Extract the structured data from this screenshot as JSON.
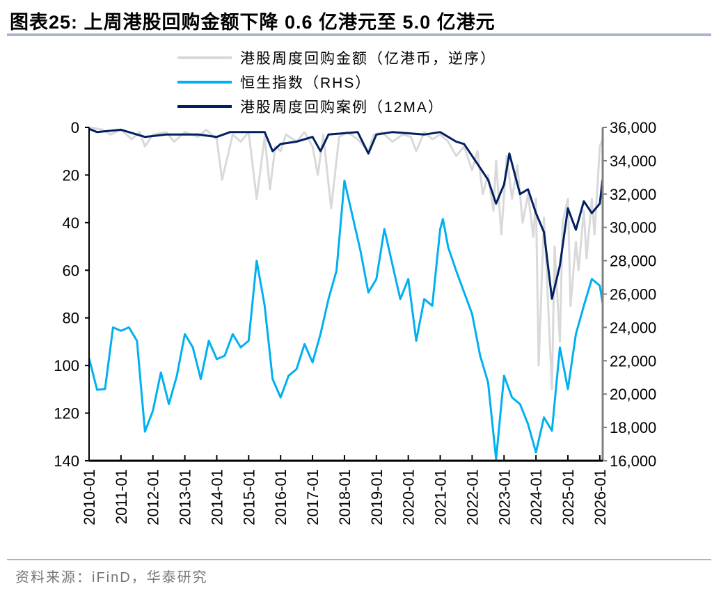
{
  "header": {
    "title": "图表25:  上周港股回购金额下降 0.6 亿港元至 5.0 亿港元"
  },
  "footer": {
    "source": "资料来源：iFinD，华泰研究"
  },
  "chart_data": {
    "type": "line",
    "title": "图表25:  上周港股回购金额下降 0.6 亿港元至 5.0 亿港元",
    "legend_position": "top-center",
    "grid": false,
    "x_ticks": [
      "2010-01",
      "2011-01",
      "2012-01",
      "2013-01",
      "2014-01",
      "2015-01",
      "2016-01",
      "2017-01",
      "2018-01",
      "2019-01",
      "2020-01",
      "2021-01",
      "2022-01",
      "2023-01",
      "2024-01",
      "2025-01",
      "2026-01"
    ],
    "left_axis": {
      "ylim": [
        0,
        140
      ],
      "inverted": true,
      "ticks": [
        "0",
        "20",
        "40",
        "60",
        "80",
        "100",
        "120",
        "140"
      ]
    },
    "right_axis": {
      "ylim": [
        16000,
        36000
      ],
      "ticks": [
        "16,000",
        "18,000",
        "20,000",
        "22,000",
        "24,000",
        "26,000",
        "28,000",
        "30,000",
        "32,000",
        "34,000",
        "36,000"
      ]
    },
    "series": [
      {
        "name": "港股周度回购金额（亿港币，逆序）",
        "axis": "left",
        "color": "#d9d9d9",
        "x": [
          "2010-01",
          "2010-06",
          "2010-09",
          "2011-01",
          "2011-05",
          "2011-08",
          "2011-10",
          "2012-01",
          "2012-06",
          "2012-09",
          "2013-01",
          "2013-06",
          "2013-09",
          "2014-01",
          "2014-03",
          "2014-07",
          "2014-10",
          "2015-01",
          "2015-04",
          "2015-07",
          "2015-09",
          "2015-11",
          "2016-01",
          "2016-03",
          "2016-07",
          "2016-10",
          "2017-01",
          "2017-03",
          "2017-05",
          "2017-08",
          "2017-11",
          "2018-02",
          "2018-06",
          "2018-10",
          "2018-12",
          "2019-03",
          "2019-07",
          "2019-11",
          "2020-02",
          "2020-04",
          "2020-07",
          "2020-10",
          "2021-01",
          "2021-04",
          "2021-07",
          "2021-10",
          "2022-01",
          "2022-03",
          "2022-05",
          "2022-07",
          "2022-09",
          "2022-10",
          "2022-12",
          "2023-02",
          "2023-04",
          "2023-06",
          "2023-08",
          "2023-10",
          "2023-12",
          "2024-01",
          "2024-02",
          "2024-04",
          "2024-05",
          "2024-07",
          "2024-08",
          "2024-10",
          "2024-11",
          "2025-01",
          "2025-02",
          "2025-04",
          "2025-05",
          "2025-07",
          "2025-08",
          "2025-10",
          "2025-11",
          "2026-01",
          "2026-02"
        ],
        "values": [
          0,
          1,
          3,
          1,
          5,
          2,
          8,
          3,
          2,
          6,
          2,
          4,
          1,
          5,
          22,
          3,
          6,
          2,
          30,
          4,
          26,
          8,
          10,
          3,
          6,
          2,
          8,
          20,
          3,
          34,
          4,
          2,
          5,
          10,
          3,
          2,
          6,
          3,
          4,
          10,
          2,
          5,
          3,
          6,
          12,
          8,
          18,
          10,
          28,
          20,
          35,
          14,
          45,
          12,
          30,
          16,
          40,
          28,
          46,
          30,
          100,
          38,
          60,
          110,
          50,
          90,
          40,
          30,
          75,
          48,
          60,
          35,
          55,
          30,
          45,
          8,
          5
        ]
      },
      {
        "name": "恒生指数（RHS）",
        "axis": "right",
        "color": "#00b0f0",
        "x": [
          "2010-01",
          "2010-04",
          "2010-07",
          "2010-10",
          "2011-01",
          "2011-04",
          "2011-07",
          "2011-10",
          "2012-01",
          "2012-04",
          "2012-07",
          "2012-10",
          "2013-01",
          "2013-04",
          "2013-07",
          "2013-10",
          "2014-01",
          "2014-04",
          "2014-07",
          "2014-10",
          "2015-01",
          "2015-04",
          "2015-07",
          "2015-10",
          "2016-01",
          "2016-04",
          "2016-07",
          "2016-10",
          "2017-01",
          "2017-04",
          "2017-07",
          "2017-10",
          "2018-01",
          "2018-04",
          "2018-07",
          "2018-10",
          "2019-01",
          "2019-04",
          "2019-07",
          "2019-10",
          "2020-01",
          "2020-04",
          "2020-07",
          "2020-10",
          "2021-01",
          "2021-02",
          "2021-04",
          "2021-07",
          "2021-10",
          "2022-01",
          "2022-04",
          "2022-07",
          "2022-10",
          "2023-01",
          "2023-04",
          "2023-07",
          "2023-10",
          "2024-01",
          "2024-04",
          "2024-07",
          "2024-10",
          "2025-01",
          "2025-04",
          "2025-07",
          "2025-10",
          "2026-01",
          "2026-02"
        ],
        "values": [
          22140,
          20260,
          20300,
          24000,
          23800,
          24000,
          23200,
          17750,
          19000,
          21300,
          19400,
          21100,
          23600,
          22800,
          20900,
          23200,
          22100,
          22300,
          23600,
          22800,
          23200,
          28000,
          25300,
          20900,
          19800,
          21100,
          21500,
          23000,
          21900,
          23600,
          25700,
          27400,
          32800,
          30700,
          28600,
          26100,
          26900,
          29900,
          27800,
          25700,
          26900,
          23200,
          25700,
          25300,
          29900,
          30500,
          28800,
          27400,
          26100,
          24800,
          22300,
          20700,
          16100,
          21100,
          19800,
          19400,
          18200,
          16500,
          18600,
          17800,
          22800,
          20300,
          23600,
          25300,
          26900,
          26500,
          25500
        ]
      },
      {
        "name": "港股周度回购案例（12MA）",
        "axis": "left",
        "color": "#002060",
        "x": [
          "2010-01",
          "2010-04",
          "2011-01",
          "2011-10",
          "2012-06",
          "2013-06",
          "2014-01",
          "2014-06",
          "2015-07",
          "2015-10",
          "2016-01",
          "2016-07",
          "2017-01",
          "2017-04",
          "2017-07",
          "2018-06",
          "2018-10",
          "2019-01",
          "2019-07",
          "2020-07",
          "2021-01",
          "2021-04",
          "2021-07",
          "2021-10",
          "2022-01",
          "2022-04",
          "2022-07",
          "2022-10",
          "2023-01",
          "2023-03",
          "2023-07",
          "2023-10",
          "2024-01",
          "2024-04",
          "2024-07",
          "2024-10",
          "2025-01",
          "2025-04",
          "2025-07",
          "2025-10",
          "2026-01",
          "2026-02"
        ],
        "values": [
          0.6,
          2,
          1,
          4,
          3,
          3,
          4,
          2,
          2,
          10,
          7,
          6,
          4,
          10,
          3,
          2,
          11,
          3,
          2,
          3,
          2,
          4,
          6,
          7,
          12,
          17,
          22,
          32,
          24,
          11,
          28,
          26,
          36,
          44,
          72,
          58,
          34,
          43,
          31,
          36,
          32,
          22
        ]
      }
    ]
  }
}
